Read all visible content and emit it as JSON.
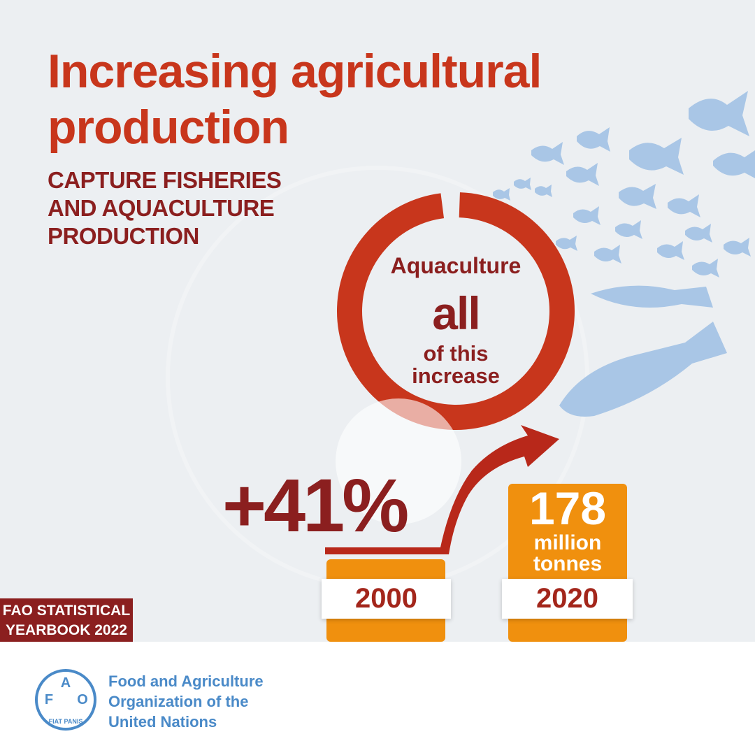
{
  "header": {
    "title": "Increasing agricultural production",
    "subtitle": "CAPTURE FISHERIES AND AQUACULTURE PRODUCTION"
  },
  "donut": {
    "top": "Aquaculture",
    "middle": "all",
    "bottom": "of this increase"
  },
  "change": "+41%",
  "bars": [
    {
      "label": "2000"
    },
    {
      "label": "2020",
      "value": "178",
      "unit": "million tonnes"
    }
  ],
  "badge": "FAO STATISTICAL YEARBOOK 2022",
  "footer": {
    "logo": {
      "letters": [
        "F",
        "A",
        "O"
      ],
      "motto": "FIAT PANIS"
    },
    "organization": "Food and Agriculture Organization of the United Nations"
  }
}
